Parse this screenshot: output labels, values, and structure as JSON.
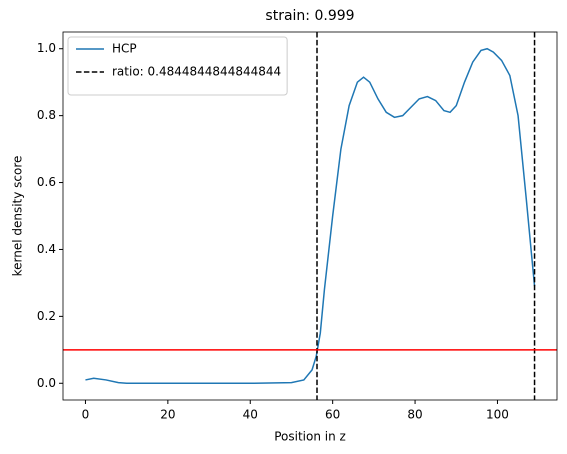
{
  "chart_data": {
    "type": "line",
    "title": "strain: 0.999",
    "xlabel": "Position in z",
    "ylabel": "kernel density score",
    "xlim": [
      -5.45,
      114.45
    ],
    "xticks": [
      0,
      20,
      40,
      60,
      80,
      100
    ],
    "ylim": [
      -0.05,
      1.05
    ],
    "yticks": [
      {
        "value": 0,
        "label": "0.0"
      },
      0.2,
      0.4,
      0.6,
      0.8,
      {
        "value": 1,
        "label": "1.0"
      }
    ],
    "legend": "upper left",
    "series": [
      {
        "name": "HCP",
        "color": "#1f77b4",
        "x": [
          0,
          2,
          5,
          8,
          10,
          20,
          40,
          50,
          53,
          55,
          56,
          57,
          58,
          60,
          62,
          64,
          66,
          67.5,
          69,
          71,
          73,
          75,
          77,
          79,
          81,
          83,
          85,
          87,
          88.5,
          90,
          92,
          94,
          96,
          97.5,
          99,
          101,
          103,
          105,
          107,
          109
        ],
        "values": [
          0.01,
          0.015,
          0.01,
          0.002,
          0,
          0,
          0,
          0.002,
          0.01,
          0.04,
          0.08,
          0.15,
          0.28,
          0.5,
          0.7,
          0.83,
          0.9,
          0.915,
          0.9,
          0.85,
          0.81,
          0.795,
          0.8,
          0.825,
          0.85,
          0.857,
          0.845,
          0.815,
          0.81,
          0.83,
          0.9,
          0.96,
          0.995,
          1.0,
          0.99,
          0.965,
          0.92,
          0.8,
          0.55,
          0.29
        ]
      }
    ],
    "vlines": [
      {
        "name": "ratio: 0.4844844844844844",
        "x": 56.2,
        "color": "#000000"
      },
      {
        "x": 109,
        "color": "#000000"
      }
    ],
    "hline": {
      "y": 0.1,
      "color": "#ff0000"
    }
  }
}
